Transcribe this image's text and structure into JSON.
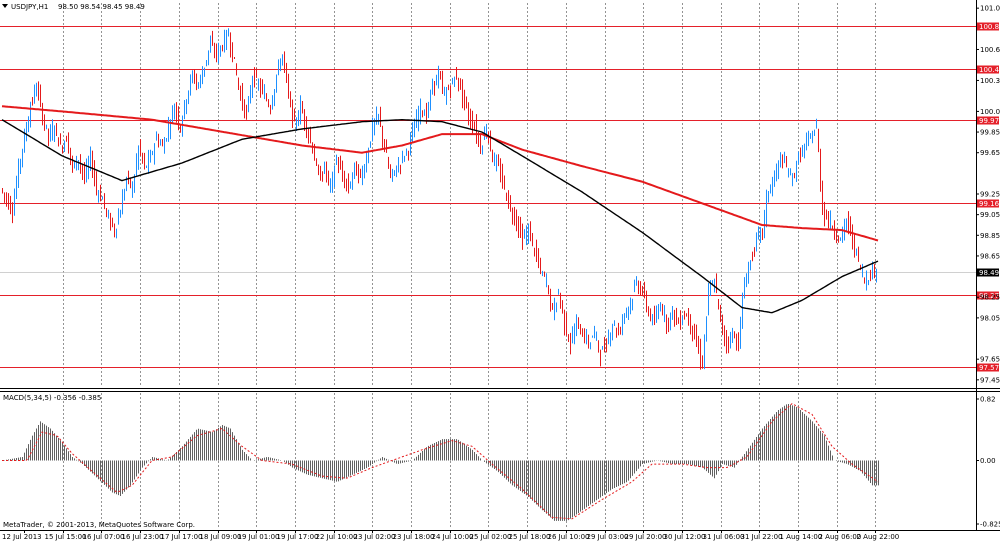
{
  "header": {
    "symbol_label": "USDJPY,H1",
    "ohlc": "98.50 98.54 98.45 98.49"
  },
  "macd_panel": {
    "label": "MACD(5,34,5) -0.356 -0.385"
  },
  "footer": {
    "copyright": "MetaTrader, © 2001-2013, MetaQuotes Software Corp."
  },
  "colors": {
    "bull_candle": "#1e90ff",
    "bear_candle": "#e41a1c",
    "level_line": "#e4202a",
    "ma_slow": "#e41a1c",
    "ma_fast": "#000000",
    "macd_hist": "#606060",
    "macd_signal": "#e41a1c",
    "badge_bg": "#e4202a",
    "current_badge_bg": "#000000"
  },
  "chart_data": [
    {
      "type": "candlestick",
      "symbol": "USDJPY",
      "timeframe": "H1",
      "y_axis_ticks": [
        "101.05",
        "100.65",
        "100.35",
        "100.05",
        "99.85",
        "99.65",
        "99.25",
        "99.05",
        "98.85",
        "98.65",
        "98.25",
        "98.05",
        "97.65",
        "97.45"
      ],
      "ylim": [
        97.4,
        101.1
      ],
      "x_axis_labels": [
        "12 Jul 2013",
        "15 Jul 15:00",
        "16 Jul 07:00",
        "16 Jul 23:00",
        "17 Jul 17:00",
        "18 Jul 09:00",
        "19 Jul 01:00",
        "19 Jul 17:00",
        "22 Jul 10:00",
        "23 Jul 02:00",
        "23 Jul 18:00",
        "24 Jul 10:00",
        "25 Jul 02:00",
        "25 Jul 18:00",
        "26 Jul 10:00",
        "29 Jul 03:00",
        "29 Jul 20:00",
        "30 Jul 12:00",
        "31 Jul 06:00",
        "31 Jul 22:00",
        "1 Aug 14:00",
        "2 Aug 06:00",
        "2 Aug 22:00"
      ],
      "horizontal_levels": [
        {
          "label": "100.88",
          "value": 100.88
        },
        {
          "label": "100.46",
          "value": 100.46
        },
        {
          "label": "99.97",
          "value": 99.97
        },
        {
          "label": "99.16",
          "value": 99.16
        },
        {
          "label": "98.27",
          "value": 98.27
        },
        {
          "label": "97.57",
          "value": 97.57
        }
      ],
      "current_price": {
        "label": "98.49",
        "value": 98.49
      },
      "price_path": [
        [
          0,
          99.3
        ],
        [
          6,
          99.2
        ],
        [
          12,
          99.1
        ],
        [
          18,
          99.5
        ],
        [
          24,
          99.8
        ],
        [
          30,
          100.1
        ],
        [
          36,
          100.3
        ],
        [
          42,
          100.0
        ],
        [
          48,
          99.8
        ],
        [
          54,
          99.9
        ],
        [
          60,
          99.7
        ],
        [
          66,
          99.8
        ],
        [
          72,
          99.5
        ],
        [
          78,
          99.6
        ],
        [
          84,
          99.4
        ],
        [
          90,
          99.6
        ],
        [
          96,
          99.3
        ],
        [
          102,
          99.2
        ],
        [
          108,
          99.0
        ],
        [
          114,
          98.9
        ],
        [
          120,
          99.1
        ],
        [
          126,
          99.4
        ],
        [
          132,
          99.3
        ],
        [
          138,
          99.7
        ],
        [
          144,
          99.5
        ],
        [
          150,
          99.6
        ],
        [
          156,
          99.8
        ],
        [
          162,
          99.7
        ],
        [
          168,
          99.9
        ],
        [
          174,
          100.1
        ],
        [
          180,
          99.9
        ],
        [
          186,
          100.2
        ],
        [
          192,
          100.4
        ],
        [
          198,
          100.3
        ],
        [
          204,
          100.5
        ],
        [
          210,
          100.7
        ],
        [
          216,
          100.6
        ],
        [
          222,
          100.7
        ],
        [
          228,
          100.8
        ],
        [
          234,
          100.5
        ],
        [
          240,
          100.2
        ],
        [
          246,
          100.0
        ],
        [
          252,
          100.4
        ],
        [
          258,
          100.3
        ],
        [
          264,
          100.2
        ],
        [
          270,
          100.1
        ],
        [
          276,
          100.4
        ],
        [
          282,
          100.6
        ],
        [
          288,
          100.2
        ],
        [
          294,
          99.9
        ],
        [
          300,
          100.1
        ],
        [
          306,
          99.9
        ],
        [
          312,
          99.7
        ],
        [
          318,
          99.4
        ],
        [
          324,
          99.5
        ],
        [
          330,
          99.3
        ],
        [
          336,
          99.6
        ],
        [
          342,
          99.4
        ],
        [
          348,
          99.3
        ],
        [
          354,
          99.5
        ],
        [
          360,
          99.4
        ],
        [
          366,
          99.6
        ],
        [
          372,
          99.9
        ],
        [
          378,
          100.0
        ],
        [
          384,
          99.7
        ],
        [
          390,
          99.4
        ],
        [
          396,
          99.5
        ],
        [
          402,
          99.6
        ],
        [
          408,
          99.7
        ],
        [
          414,
          99.9
        ],
        [
          420,
          100.1
        ],
        [
          426,
          100.0
        ],
        [
          432,
          100.3
        ],
        [
          438,
          100.4
        ],
        [
          444,
          100.2
        ],
        [
          450,
          100.3
        ],
        [
          456,
          100.4
        ],
        [
          462,
          100.2
        ],
        [
          468,
          100.0
        ],
        [
          474,
          99.9
        ],
        [
          480,
          99.7
        ],
        [
          486,
          99.9
        ],
        [
          492,
          99.6
        ],
        [
          498,
          99.5
        ],
        [
          504,
          99.3
        ],
        [
          510,
          99.1
        ],
        [
          516,
          99.0
        ],
        [
          522,
          98.8
        ],
        [
          528,
          98.9
        ],
        [
          534,
          98.7
        ],
        [
          540,
          98.5
        ],
        [
          546,
          98.4
        ],
        [
          552,
          98.1
        ],
        [
          558,
          98.3
        ],
        [
          564,
          98.0
        ],
        [
          570,
          97.8
        ],
        [
          576,
          98.0
        ],
        [
          582,
          97.9
        ],
        [
          588,
          97.8
        ],
        [
          594,
          97.9
        ],
        [
          600,
          97.7
        ],
        [
          606,
          97.8
        ],
        [
          612,
          98.0
        ],
        [
          618,
          97.9
        ],
        [
          624,
          98.1
        ],
        [
          630,
          98.2
        ],
        [
          636,
          98.4
        ],
        [
          642,
          98.3
        ],
        [
          648,
          98.1
        ],
        [
          654,
          98.0
        ],
        [
          660,
          98.2
        ],
        [
          666,
          98.0
        ],
        [
          672,
          98.1
        ],
        [
          678,
          98.0
        ],
        [
          684,
          98.1
        ],
        [
          690,
          98.0
        ],
        [
          696,
          97.8
        ],
        [
          702,
          97.6
        ],
        [
          708,
          98.3
        ],
        [
          714,
          98.4
        ],
        [
          720,
          98.0
        ],
        [
          726,
          97.8
        ],
        [
          732,
          97.9
        ],
        [
          738,
          97.8
        ],
        [
          744,
          98.4
        ],
        [
          750,
          98.6
        ],
        [
          756,
          98.8
        ],
        [
          762,
          98.9
        ],
        [
          768,
          99.3
        ],
        [
          774,
          99.4
        ],
        [
          780,
          99.6
        ],
        [
          786,
          99.5
        ],
        [
          792,
          99.4
        ],
        [
          798,
          99.6
        ],
        [
          804,
          99.7
        ],
        [
          810,
          99.8
        ],
        [
          816,
          99.9
        ],
        [
          822,
          99.1
        ],
        [
          828,
          99.0
        ],
        [
          834,
          98.9
        ],
        [
          840,
          98.8
        ],
        [
          846,
          99.0
        ],
        [
          852,
          98.8
        ],
        [
          858,
          98.6
        ],
        [
          864,
          98.4
        ],
        [
          870,
          98.5
        ],
        [
          874,
          98.49
        ]
      ],
      "moving_averages": [
        {
          "role": "slow",
          "color": "#e41a1c",
          "points": [
            [
              0,
              100.1
            ],
            [
              60,
              100.05
            ],
            [
              150,
              99.97
            ],
            [
              240,
              99.82
            ],
            [
              300,
              99.72
            ],
            [
              360,
              99.65
            ],
            [
              400,
              99.72
            ],
            [
              440,
              99.83
            ],
            [
              480,
              99.83
            ],
            [
              520,
              99.68
            ],
            [
              580,
              99.52
            ],
            [
              640,
              99.37
            ],
            [
              700,
              99.16
            ],
            [
              760,
              98.95
            ],
            [
              800,
              98.92
            ],
            [
              840,
              98.9
            ],
            [
              876,
              98.8
            ]
          ]
        },
        {
          "role": "fast",
          "color": "#000000",
          "points": [
            [
              0,
              99.97
            ],
            [
              60,
              99.62
            ],
            [
              120,
              99.38
            ],
            [
              180,
              99.55
            ],
            [
              240,
              99.78
            ],
            [
              300,
              99.88
            ],
            [
              360,
              99.95
            ],
            [
              400,
              99.97
            ],
            [
              440,
              99.95
            ],
            [
              480,
              99.85
            ],
            [
              520,
              99.62
            ],
            [
              580,
              99.27
            ],
            [
              640,
              98.88
            ],
            [
              700,
              98.45
            ],
            [
              740,
              98.15
            ],
            [
              770,
              98.1
            ],
            [
              800,
              98.22
            ],
            [
              840,
              98.45
            ],
            [
              876,
              98.6
            ]
          ]
        }
      ]
    },
    {
      "type": "bar",
      "indicator": "MACD",
      "params": "5,34,5",
      "y_axis_ticks": [
        "0.82",
        "0.00",
        "-0.825"
      ],
      "ylim": [
        -0.95,
        0.95
      ],
      "histogram_profile": [
        [
          0,
          0.0
        ],
        [
          20,
          0.05
        ],
        [
          30,
          0.35
        ],
        [
          38,
          0.55
        ],
        [
          48,
          0.45
        ],
        [
          60,
          0.25
        ],
        [
          70,
          0.05
        ],
        [
          80,
          -0.05
        ],
        [
          95,
          -0.25
        ],
        [
          110,
          -0.45
        ],
        [
          118,
          -0.5
        ],
        [
          128,
          -0.35
        ],
        [
          140,
          -0.1
        ],
        [
          150,
          0.05
        ],
        [
          165,
          0.0
        ],
        [
          180,
          0.2
        ],
        [
          195,
          0.45
        ],
        [
          210,
          0.4
        ],
        [
          220,
          0.5
        ],
        [
          228,
          0.45
        ],
        [
          240,
          0.15
        ],
        [
          250,
          0.0
        ],
        [
          265,
          0.05
        ],
        [
          280,
          0.0
        ],
        [
          290,
          -0.1
        ],
        [
          305,
          -0.2
        ],
        [
          320,
          -0.25
        ],
        [
          335,
          -0.3
        ],
        [
          350,
          -0.2
        ],
        [
          365,
          -0.1
        ],
        [
          380,
          0.05
        ],
        [
          395,
          -0.05
        ],
        [
          410,
          0.0
        ],
        [
          425,
          0.2
        ],
        [
          440,
          0.3
        ],
        [
          455,
          0.3
        ],
        [
          470,
          0.15
        ],
        [
          480,
          0.0
        ],
        [
          495,
          -0.15
        ],
        [
          510,
          -0.35
        ],
        [
          525,
          -0.5
        ],
        [
          540,
          -0.7
        ],
        [
          552,
          -0.85
        ],
        [
          565,
          -0.85
        ],
        [
          580,
          -0.7
        ],
        [
          595,
          -0.55
        ],
        [
          610,
          -0.4
        ],
        [
          625,
          -0.3
        ],
        [
          640,
          -0.05
        ],
        [
          655,
          0.0
        ],
        [
          670,
          -0.05
        ],
        [
          685,
          -0.05
        ],
        [
          700,
          -0.1
        ],
        [
          712,
          -0.25
        ],
        [
          720,
          -0.05
        ],
        [
          732,
          -0.1
        ],
        [
          745,
          0.15
        ],
        [
          760,
          0.45
        ],
        [
          775,
          0.7
        ],
        [
          785,
          0.8
        ],
        [
          795,
          0.75
        ],
        [
          810,
          0.55
        ],
        [
          822,
          0.35
        ],
        [
          832,
          0.0
        ],
        [
          845,
          -0.05
        ],
        [
          858,
          -0.15
        ],
        [
          870,
          -0.35
        ],
        [
          876,
          -0.35
        ]
      ],
      "signal_profile": [
        [
          0,
          0.0
        ],
        [
          25,
          0.0
        ],
        [
          40,
          0.4
        ],
        [
          55,
          0.35
        ],
        [
          70,
          0.1
        ],
        [
          90,
          -0.15
        ],
        [
          115,
          -0.45
        ],
        [
          130,
          -0.35
        ],
        [
          150,
          0.0
        ],
        [
          170,
          0.05
        ],
        [
          195,
          0.35
        ],
        [
          220,
          0.45
        ],
        [
          240,
          0.2
        ],
        [
          260,
          0.0
        ],
        [
          290,
          -0.05
        ],
        [
          320,
          -0.22
        ],
        [
          345,
          -0.25
        ],
        [
          370,
          -0.1
        ],
        [
          390,
          0.0
        ],
        [
          420,
          0.15
        ],
        [
          450,
          0.28
        ],
        [
          470,
          0.2
        ],
        [
          490,
          -0.05
        ],
        [
          520,
          -0.4
        ],
        [
          550,
          -0.8
        ],
        [
          570,
          -0.82
        ],
        [
          600,
          -0.55
        ],
        [
          630,
          -0.3
        ],
        [
          650,
          -0.05
        ],
        [
          680,
          -0.05
        ],
        [
          705,
          -0.1
        ],
        [
          725,
          -0.1
        ],
        [
          745,
          0.05
        ],
        [
          770,
          0.55
        ],
        [
          790,
          0.8
        ],
        [
          810,
          0.65
        ],
        [
          830,
          0.2
        ],
        [
          850,
          -0.05
        ],
        [
          876,
          -0.3
        ]
      ]
    }
  ]
}
